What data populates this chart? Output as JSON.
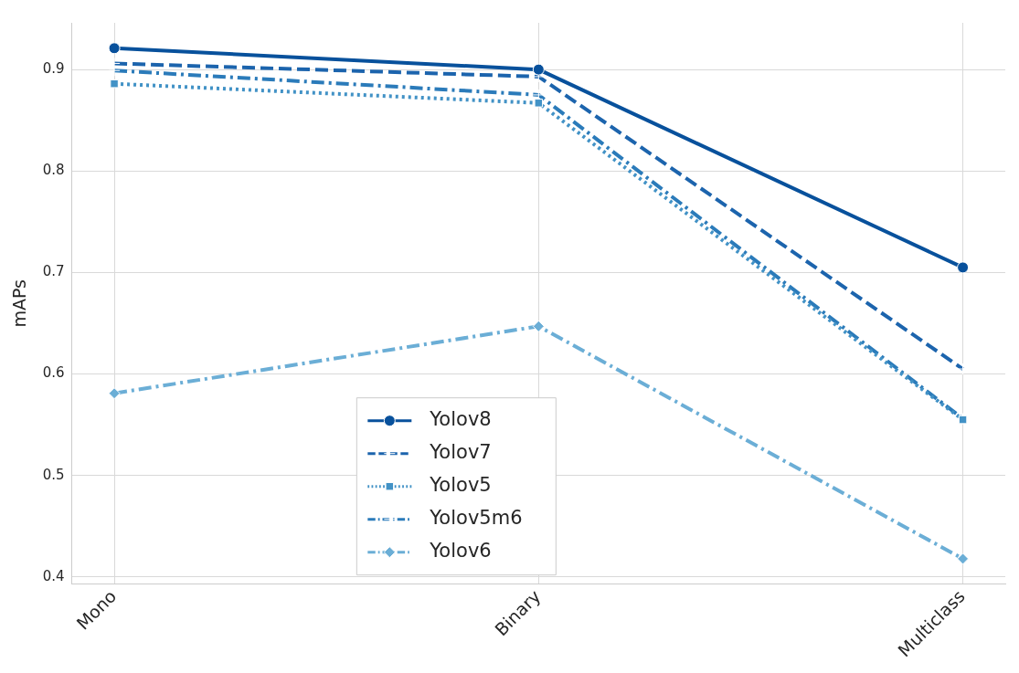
{
  "chart_data": {
    "type": "line",
    "ylabel": "mAPs",
    "categories": [
      "Mono",
      "Binary",
      "Multiclass"
    ],
    "series": [
      {
        "name": "Yolov8",
        "color": "#08519c",
        "values": [
          0.921,
          0.9,
          0.705
        ],
        "marker": "circle",
        "line_style": "solid"
      },
      {
        "name": "Yolov7",
        "color": "#1c64ad",
        "values": [
          0.906,
          0.893,
          0.605
        ],
        "marker": "cross",
        "line_style": "dashed"
      },
      {
        "name": "Yolov5",
        "color": "#4292c6",
        "values": [
          0.886,
          0.867,
          0.555
        ],
        "marker": "square",
        "line_style": "dotted"
      },
      {
        "name": "Yolov5m6",
        "color": "#2b7bba",
        "values": [
          0.899,
          0.875,
          0.556
        ],
        "marker": "cross",
        "line_style": "dashdot"
      },
      {
        "name": "Yolov6",
        "color": "#6baed6",
        "values": [
          0.581,
          0.647,
          0.418
        ],
        "marker": "diamond",
        "line_style": "dashdot"
      }
    ],
    "ylim": [
      0.393,
      0.946
    ],
    "yticks": [
      0.4,
      0.5,
      0.6,
      0.7,
      0.8,
      0.9
    ],
    "grid": true,
    "legend": "bottom"
  }
}
